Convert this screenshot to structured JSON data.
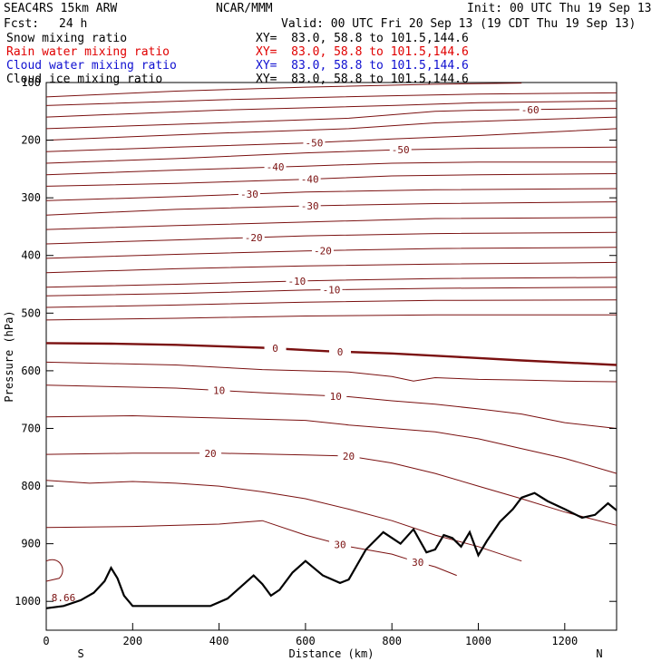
{
  "header": {
    "model": "SEAC4RS 15km ARW",
    "org": "NCAR/MMM",
    "init": "Init: 00 UTC Thu 19 Sep 13",
    "fcst_label": "Fcst:",
    "fcst_value": "24 h",
    "valid": "Valid: 00 UTC Fri 20 Sep 13 (19 CDT Thu 19 Sep 13)"
  },
  "legend": [
    {
      "label": "Snow mixing ratio",
      "xy": "XY=  83.0, 58.8 to 101.5,144.6",
      "color": "#000000"
    },
    {
      "label": "Rain water mixing ratio",
      "xy": "XY=  83.0, 58.8 to 101.5,144.6",
      "color": "#e00000"
    },
    {
      "label": "Cloud water mixing ratio",
      "xy": "XY=  83.0, 58.8 to 101.5,144.6",
      "color": "#1010d0"
    },
    {
      "label": "Cloud ice mixing ratio",
      "xy": "XY=  83.0, 58.8 to 101.5,144.6",
      "color": "#000000"
    }
  ],
  "chart_data": {
    "type": "line",
    "title": "",
    "xlabel": "Distance (km)",
    "ylabel": "Pressure (hPa)",
    "xlim": [
      0,
      1320
    ],
    "ylim": [
      100,
      1050
    ],
    "y_inverted": true,
    "x_ticks": [
      0,
      200,
      400,
      600,
      800,
      1000,
      1200
    ],
    "y_ticks": [
      200,
      300,
      400,
      500,
      600,
      700,
      800,
      900,
      1000
    ],
    "y_tick_labels": [
      "200",
      "300",
      "400",
      "500",
      "600",
      "700",
      "800",
      "900",
      "1000"
    ],
    "x_tick_labels": [
      "0",
      "200",
      "400",
      "600",
      "800",
      "1000",
      "1200"
    ],
    "y_tick_label_top": "100",
    "endpoints": {
      "left": "S",
      "right": "N"
    },
    "contour_color": "#7a1010",
    "terrain_color": "#000000",
    "isotherms": [
      {
        "points": [
          [
            0,
            125
          ],
          [
            300,
            115
          ],
          [
            600,
            108
          ],
          [
            900,
            103
          ],
          [
            1100,
            101
          ]
        ]
      },
      {
        "points": [
          [
            0,
            140
          ],
          [
            400,
            130
          ],
          [
            800,
            123
          ],
          [
            1000,
            120
          ],
          [
            1320,
            118
          ]
        ]
      },
      {
        "points": [
          [
            0,
            160
          ],
          [
            400,
            148
          ],
          [
            800,
            140
          ],
          [
            1000,
            135
          ],
          [
            1320,
            132
          ]
        ]
      },
      {
        "points": [
          [
            0,
            180
          ],
          [
            400,
            170
          ],
          [
            700,
            162
          ],
          [
            900,
            150
          ],
          [
            1000,
            148
          ],
          [
            1320,
            145
          ]
        ],
        "label": "-60",
        "label_x": 1120
      },
      {
        "points": [
          [
            0,
            200
          ],
          [
            400,
            188
          ],
          [
            700,
            180
          ],
          [
            900,
            170
          ],
          [
            1100,
            165
          ],
          [
            1320,
            160
          ]
        ]
      },
      {
        "points": [
          [
            0,
            220
          ],
          [
            300,
            212
          ],
          [
            600,
            205
          ],
          [
            800,
            198
          ],
          [
            1000,
            192
          ],
          [
            1320,
            180
          ]
        ],
        "label": "-50",
        "label_x": 620
      },
      {
        "points": [
          [
            0,
            240
          ],
          [
            300,
            232
          ],
          [
            600,
            222
          ],
          [
            800,
            217
          ],
          [
            1000,
            214
          ],
          [
            1320,
            212
          ]
        ],
        "label": "-50",
        "label_x": 820
      },
      {
        "points": [
          [
            0,
            260
          ],
          [
            300,
            252
          ],
          [
            600,
            245
          ],
          [
            800,
            240
          ],
          [
            1000,
            238
          ],
          [
            1320,
            238
          ]
        ],
        "label": "-40",
        "label_x": 530
      },
      {
        "points": [
          [
            0,
            280
          ],
          [
            300,
            275
          ],
          [
            600,
            268
          ],
          [
            800,
            262
          ],
          [
            1000,
            260
          ],
          [
            1320,
            258
          ]
        ],
        "label": "-40",
        "label_x": 610
      },
      {
        "points": [
          [
            0,
            305
          ],
          [
            300,
            298
          ],
          [
            600,
            290
          ],
          [
            900,
            286
          ],
          [
            1320,
            284
          ]
        ],
        "label": "-30",
        "label_x": 470
      },
      {
        "points": [
          [
            0,
            330
          ],
          [
            300,
            320
          ],
          [
            600,
            314
          ],
          [
            900,
            310
          ],
          [
            1320,
            307
          ]
        ],
        "label": "-30",
        "label_x": 610
      },
      {
        "points": [
          [
            0,
            355
          ],
          [
            300,
            348
          ],
          [
            600,
            342
          ],
          [
            900,
            336
          ],
          [
            1320,
            334
          ]
        ]
      },
      {
        "points": [
          [
            0,
            380
          ],
          [
            300,
            373
          ],
          [
            600,
            366
          ],
          [
            900,
            362
          ],
          [
            1320,
            360
          ]
        ],
        "label": "-20",
        "label_x": 480
      },
      {
        "points": [
          [
            0,
            405
          ],
          [
            300,
            398
          ],
          [
            600,
            392
          ],
          [
            900,
            388
          ],
          [
            1320,
            386
          ]
        ],
        "label": "-20",
        "label_x": 640
      },
      {
        "points": [
          [
            0,
            430
          ],
          [
            300,
            423
          ],
          [
            600,
            418
          ],
          [
            900,
            415
          ],
          [
            1320,
            412
          ]
        ]
      },
      {
        "points": [
          [
            0,
            455
          ],
          [
            300,
            450
          ],
          [
            600,
            444
          ],
          [
            900,
            440
          ],
          [
            1320,
            438
          ]
        ],
        "label": "-10",
        "label_x": 580
      },
      {
        "points": [
          [
            0,
            470
          ],
          [
            300,
            466
          ],
          [
            600,
            460
          ],
          [
            900,
            457
          ],
          [
            1320,
            455
          ]
        ],
        "label": "-10",
        "label_x": 660
      },
      {
        "points": [
          [
            0,
            490
          ],
          [
            300,
            486
          ],
          [
            600,
            481
          ],
          [
            900,
            478
          ],
          [
            1320,
            477
          ]
        ]
      },
      {
        "points": [
          [
            0,
            512
          ],
          [
            300,
            509
          ],
          [
            600,
            505
          ],
          [
            900,
            503
          ],
          [
            1320,
            503
          ]
        ]
      },
      {
        "points": [
          [
            0,
            552
          ],
          [
            150,
            553
          ],
          [
            300,
            555
          ],
          [
            500,
            560
          ],
          [
            650,
            566
          ],
          [
            800,
            570
          ],
          [
            950,
            576
          ],
          [
            1100,
            582
          ],
          [
            1320,
            590
          ]
        ],
        "label": "0",
        "label_x": 530,
        "label2": "0",
        "label2_x": 680,
        "bold": true
      },
      {
        "points": [
          [
            0,
            585
          ],
          [
            300,
            590
          ],
          [
            500,
            598
          ],
          [
            700,
            602
          ],
          [
            800,
            610
          ],
          [
            850,
            618
          ],
          [
            900,
            612
          ],
          [
            1000,
            615
          ],
          [
            1100,
            616
          ],
          [
            1200,
            618
          ],
          [
            1320,
            619
          ]
        ]
      },
      {
        "points": [
          [
            0,
            625
          ],
          [
            300,
            630
          ],
          [
            500,
            638
          ],
          [
            700,
            645
          ],
          [
            800,
            652
          ],
          [
            900,
            658
          ],
          [
            1000,
            666
          ],
          [
            1100,
            675
          ],
          [
            1200,
            690
          ],
          [
            1320,
            700
          ]
        ],
        "label": "10",
        "label_x": 400,
        "label2": "10",
        "label2_x": 670
      },
      {
        "points": [
          [
            0,
            680
          ],
          [
            200,
            678
          ],
          [
            400,
            682
          ],
          [
            600,
            686
          ],
          [
            700,
            694
          ],
          [
            800,
            700
          ],
          [
            900,
            706
          ],
          [
            1000,
            718
          ],
          [
            1100,
            735
          ],
          [
            1200,
            752
          ],
          [
            1320,
            778
          ]
        ]
      },
      {
        "points": [
          [
            0,
            745
          ],
          [
            200,
            743
          ],
          [
            400,
            743
          ],
          [
            600,
            746
          ],
          [
            700,
            748
          ],
          [
            800,
            760
          ],
          [
            900,
            778
          ],
          [
            1000,
            800
          ],
          [
            1100,
            822
          ],
          [
            1200,
            845
          ],
          [
            1320,
            868
          ]
        ],
        "label": "20",
        "label_x": 380,
        "label2": "20",
        "label2_x": 700
      },
      {
        "points": [
          [
            0,
            790
          ],
          [
            100,
            795
          ],
          [
            200,
            792
          ],
          [
            300,
            795
          ],
          [
            400,
            800
          ],
          [
            500,
            810
          ],
          [
            600,
            822
          ],
          [
            700,
            840
          ],
          [
            800,
            860
          ],
          [
            900,
            885
          ],
          [
            1000,
            905
          ],
          [
            1100,
            930
          ]
        ]
      },
      {
        "points": [
          [
            0,
            872
          ],
          [
            200,
            870
          ],
          [
            400,
            866
          ],
          [
            500,
            860
          ],
          [
            600,
            885
          ],
          [
            700,
            905
          ],
          [
            800,
            918
          ],
          [
            850,
            930
          ],
          [
            900,
            940
          ],
          [
            950,
            955
          ]
        ],
        "label": "30",
        "label_x": 680,
        "label2": "30",
        "label2_x": 860
      }
    ],
    "terrain": [
      [
        0,
        1012
      ],
      [
        40,
        1008
      ],
      [
        80,
        998
      ],
      [
        110,
        985
      ],
      [
        135,
        965
      ],
      [
        150,
        942
      ],
      [
        165,
        960
      ],
      [
        180,
        990
      ],
      [
        200,
        1008
      ],
      [
        300,
        1008
      ],
      [
        380,
        1008
      ],
      [
        420,
        995
      ],
      [
        450,
        975
      ],
      [
        480,
        955
      ],
      [
        500,
        970
      ],
      [
        520,
        990
      ],
      [
        540,
        980
      ],
      [
        570,
        950
      ],
      [
        600,
        930
      ],
      [
        640,
        955
      ],
      [
        680,
        968
      ],
      [
        700,
        962
      ],
      [
        740,
        910
      ],
      [
        780,
        880
      ],
      [
        820,
        900
      ],
      [
        850,
        875
      ],
      [
        880,
        915
      ],
      [
        900,
        910
      ],
      [
        920,
        885
      ],
      [
        940,
        890
      ],
      [
        960,
        905
      ],
      [
        980,
        880
      ],
      [
        1000,
        920
      ],
      [
        1020,
        895
      ],
      [
        1050,
        862
      ],
      [
        1080,
        840
      ],
      [
        1100,
        820
      ],
      [
        1130,
        812
      ],
      [
        1160,
        826
      ],
      [
        1200,
        840
      ],
      [
        1240,
        855
      ],
      [
        1270,
        850
      ],
      [
        1300,
        830
      ],
      [
        1320,
        842
      ]
    ],
    "annotations": [
      {
        "text": "8.66",
        "x": 40,
        "y": 1000
      }
    ]
  }
}
